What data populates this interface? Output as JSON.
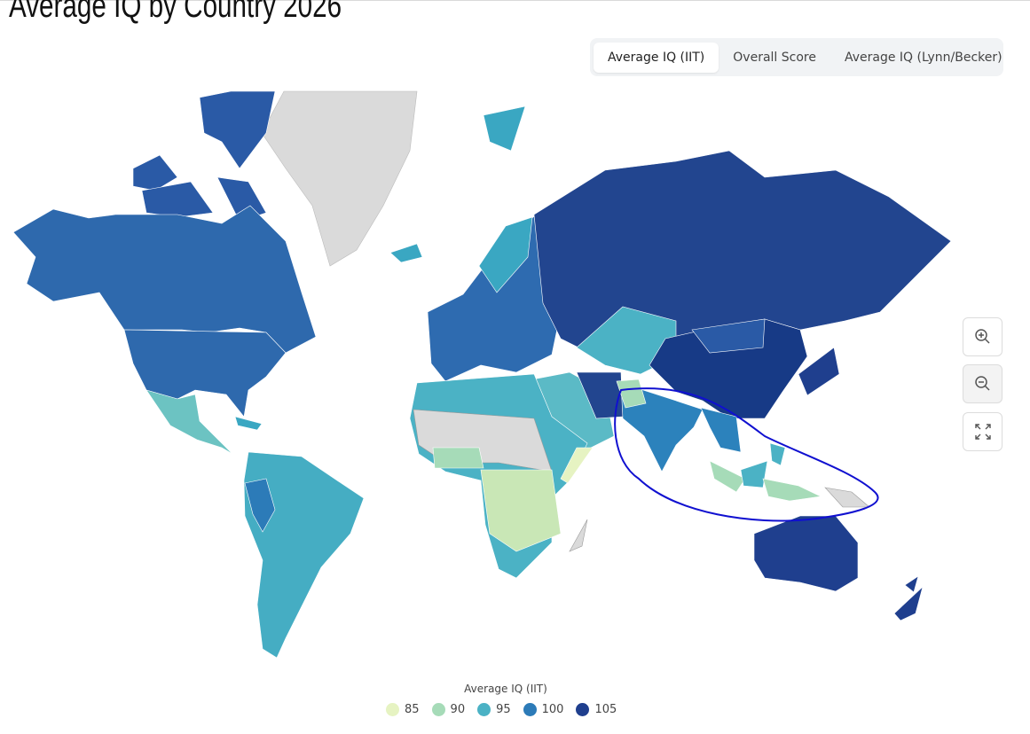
{
  "title": "Average IQ by Country 2026",
  "tabs": [
    "Average IQ (IIT)",
    "Overall Score",
    "Average IQ (Lynn/Becker)"
  ],
  "legend": {
    "title": "Average IQ (IIT)",
    "items": [
      {
        "value": 85,
        "color": "#e6f3c2"
      },
      {
        "value": 90,
        "color": "#a6dbb8"
      },
      {
        "value": 95,
        "color": "#4bb2c5"
      },
      {
        "value": 100,
        "color": "#2c7bb8"
      },
      {
        "value": 105,
        "color": "#1f3f8e"
      }
    ]
  }
}
